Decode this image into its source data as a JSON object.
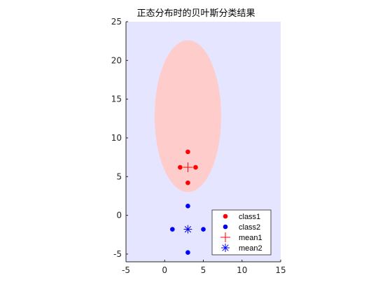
{
  "chart_data": {
    "type": "scatter",
    "title": "正态分布时的贝叶斯分类结果",
    "xlabel": "",
    "ylabel": "",
    "xlim": [
      -5,
      15
    ],
    "ylim": [
      -6,
      25
    ],
    "x_ticks": [
      "-5",
      "0",
      "5",
      "10",
      "15"
    ],
    "y_ticks": [
      "-5",
      "0",
      "5",
      "10",
      "15",
      "20",
      "25"
    ],
    "grid": false,
    "background_regions": {
      "class2_region_color": "#e5e5ff",
      "class1_region": {
        "shape": "ellipse",
        "center": [
          3,
          12.8
        ],
        "semi_axis_x": 4.3,
        "semi_axis_y": 9.8,
        "color": "#ffcccc"
      }
    },
    "series": [
      {
        "name": "class1",
        "marker": "filled-circle",
        "color": "#ff0000",
        "points": [
          [
            3,
            8.2
          ],
          [
            2,
            6.2
          ],
          [
            4,
            6.2
          ],
          [
            3,
            4.2
          ]
        ]
      },
      {
        "name": "class2",
        "marker": "filled-circle",
        "color": "#0000ff",
        "points": [
          [
            3,
            1.2
          ],
          [
            1,
            -1.8
          ],
          [
            5,
            -1.8
          ],
          [
            3,
            -4.8
          ]
        ]
      },
      {
        "name": "mean1",
        "marker": "plus",
        "color": "#ff0000",
        "points": [
          [
            3,
            6.2
          ]
        ]
      },
      {
        "name": "mean2",
        "marker": "asterisk",
        "color": "#0000ff",
        "points": [
          [
            3,
            -1.8
          ]
        ]
      }
    ],
    "legend": {
      "placement": "bottom-right",
      "entries": [
        "class1",
        "class2",
        "mean1",
        "mean2"
      ]
    }
  }
}
